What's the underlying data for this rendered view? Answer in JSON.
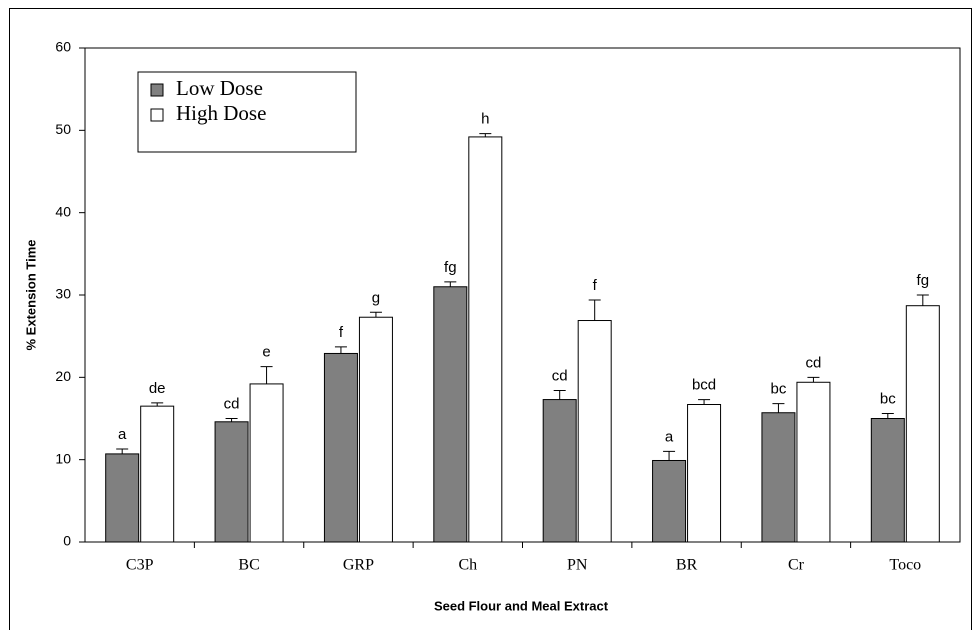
{
  "chart_data": {
    "type": "bar",
    "xlabel": "Seed Flour and Meal Extract",
    "ylabel": "% Extension Time",
    "categories": [
      "C3P",
      "BC",
      "GRP",
      "Ch",
      "PN",
      "BR",
      "Cr",
      "Toco"
    ],
    "series": [
      {
        "name": "Low Dose",
        "color": "#808080",
        "values": [
          10.7,
          14.6,
          22.9,
          31.0,
          17.3,
          9.9,
          15.7,
          15.0
        ],
        "errors": [
          0.6,
          0.4,
          0.8,
          0.6,
          1.1,
          1.1,
          1.1,
          0.6
        ],
        "labels": [
          "a",
          "cd",
          "f",
          "fg",
          "cd",
          "a",
          "bc",
          "bc"
        ]
      },
      {
        "name": "High Dose",
        "color": "#ffffff",
        "values": [
          16.5,
          19.2,
          27.3,
          49.2,
          26.9,
          16.7,
          19.4,
          28.7
        ],
        "errors": [
          0.4,
          2.1,
          0.6,
          0.4,
          2.5,
          0.6,
          0.6,
          1.3
        ],
        "labels": [
          "de",
          "e",
          "g",
          "h",
          "f",
          "bcd",
          "cd",
          "fg"
        ]
      }
    ],
    "ylim": [
      0,
      60
    ],
    "yticks": [
      0,
      10,
      20,
      30,
      40,
      50,
      60
    ],
    "legend": "upper left"
  }
}
